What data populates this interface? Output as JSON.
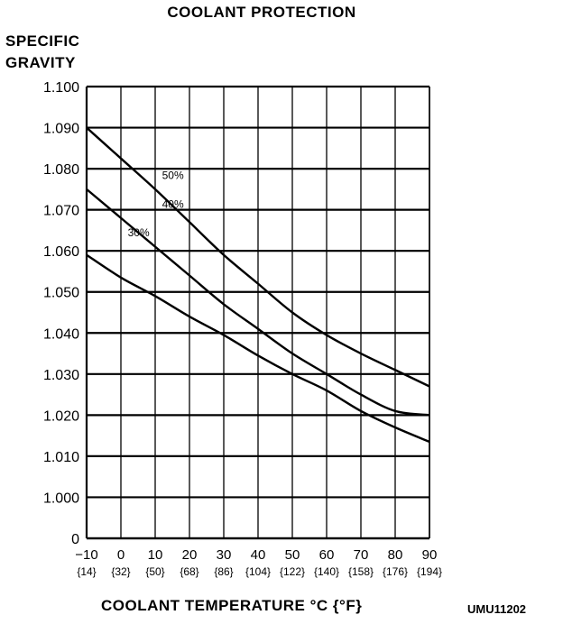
{
  "chart_data": {
    "type": "line",
    "title": "COOLANT PROTECTION",
    "ylabel_lines": [
      "SPECIFIC",
      "GRAVITY"
    ],
    "xlabel": "COOLANT TEMPERATURE °C {°F}",
    "figure_code": "UMU11202",
    "xlim": [
      -10,
      90
    ],
    "ylim": [
      1.0,
      1.1
    ],
    "x_ticks": [
      {
        "c": -10,
        "label": "−10",
        "f": "{14}"
      },
      {
        "c": 0,
        "label": "0",
        "f": "{32}"
      },
      {
        "c": 10,
        "label": "10",
        "f": "{50}"
      },
      {
        "c": 20,
        "label": "20",
        "f": "{68}"
      },
      {
        "c": 30,
        "label": "30",
        "f": "{86}"
      },
      {
        "c": 40,
        "label": "40",
        "f": "{104}"
      },
      {
        "c": 50,
        "label": "50",
        "f": "{122}"
      },
      {
        "c": 60,
        "label": "60",
        "f": "{140}"
      },
      {
        "c": 70,
        "label": "70",
        "f": "{158}"
      },
      {
        "c": 80,
        "label": "80",
        "f": "{176}"
      },
      {
        "c": 90,
        "label": "90",
        "f": "{194}"
      }
    ],
    "y_ticks": [
      {
        "v": 1.1,
        "label": "1.100"
      },
      {
        "v": 1.09,
        "label": "1.090"
      },
      {
        "v": 1.08,
        "label": "1.080"
      },
      {
        "v": 1.07,
        "label": "1.070"
      },
      {
        "v": 1.06,
        "label": "1.060"
      },
      {
        "v": 1.05,
        "label": "1.050"
      },
      {
        "v": 1.04,
        "label": "1.040"
      },
      {
        "v": 1.03,
        "label": "1.030"
      },
      {
        "v": 1.02,
        "label": "1.020"
      },
      {
        "v": 1.01,
        "label": "1.010"
      },
      {
        "v": 1.0,
        "label": "1.000"
      },
      {
        "v": 0.99,
        "label": "0"
      }
    ],
    "grid": true,
    "series": [
      {
        "name": "50%",
        "label_at": [
          12,
          1.0775
        ],
        "x": [
          -10,
          0,
          10,
          20,
          30,
          40,
          50,
          60,
          70,
          80,
          90
        ],
        "y": [
          1.09,
          1.0825,
          1.075,
          1.067,
          1.059,
          1.052,
          1.045,
          1.0395,
          1.035,
          1.031,
          1.027
        ]
      },
      {
        "name": "40%",
        "label_at": [
          12,
          1.0705
        ],
        "x": [
          -10,
          0,
          10,
          20,
          30,
          40,
          50,
          60,
          70,
          80,
          90
        ],
        "y": [
          1.075,
          1.068,
          1.061,
          1.054,
          1.047,
          1.041,
          1.035,
          1.03,
          1.025,
          1.021,
          1.02
        ]
      },
      {
        "name": "30%",
        "label_at": [
          2,
          1.0635
        ],
        "x": [
          -10,
          0,
          10,
          20,
          30,
          40,
          50,
          60,
          70,
          80,
          90
        ],
        "y": [
          1.059,
          1.0535,
          1.049,
          1.044,
          1.0395,
          1.0345,
          1.03,
          1.026,
          1.021,
          1.017,
          1.0135
        ]
      }
    ]
  }
}
